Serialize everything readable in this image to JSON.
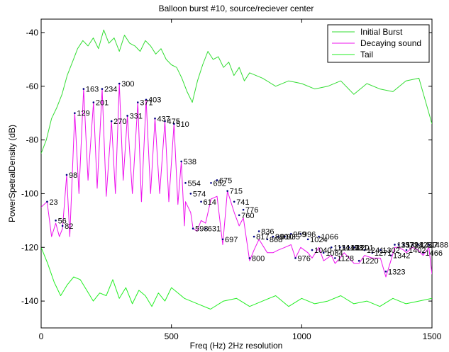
{
  "chart_data": {
    "type": "line",
    "title": "Balloon burst #10, source/reciever center",
    "xlabel": "Freq (Hz) 2Hz resolution",
    "ylabel": "PowerSpetralDensity (dB)",
    "xlim": [
      0,
      1500
    ],
    "ylim": [
      -150,
      -35
    ],
    "x_ticks": [
      0,
      500,
      1000,
      1500
    ],
    "y_ticks": [
      -140,
      -120,
      -100,
      -80,
      -60,
      -40
    ],
    "grid": false,
    "legend_position": "top-right",
    "series": [
      {
        "name": "Initial Burst",
        "color": "#33dd33",
        "x": [
          0,
          20,
          40,
          60,
          80,
          100,
          120,
          140,
          160,
          180,
          200,
          220,
          240,
          260,
          280,
          300,
          320,
          340,
          360,
          380,
          400,
          420,
          440,
          460,
          480,
          500,
          520,
          540,
          560,
          580,
          600,
          620,
          640,
          660,
          680,
          700,
          720,
          740,
          760,
          780,
          800,
          850,
          900,
          950,
          1000,
          1050,
          1100,
          1150,
          1200,
          1250,
          1300,
          1350,
          1400,
          1450,
          1500
        ],
        "values": [
          -85,
          -80,
          -72,
          -68,
          -63,
          -56,
          -51,
          -46,
          -43,
          -45,
          -42,
          -46,
          -39,
          -44,
          -42,
          -47,
          -41,
          -44,
          -45,
          -47,
          -43,
          -45,
          -48,
          -46,
          -50,
          -52,
          -53,
          -57,
          -62,
          -66,
          -58,
          -52,
          -47,
          -50,
          -49,
          -53,
          -51,
          -56,
          -53,
          -58,
          -55,
          -57,
          -60,
          -58,
          -59,
          -61,
          -60,
          -58,
          -63,
          -59,
          -61,
          -62,
          -58,
          -57,
          -74
        ]
      },
      {
        "name": "Decaying sound",
        "color": "#ee11ee",
        "x": [
          0,
          23,
          40,
          56,
          70,
          82,
          98,
          110,
          129,
          145,
          163,
          180,
          201,
          215,
          234,
          250,
          270,
          285,
          300,
          315,
          331,
          350,
          371,
          385,
          403,
          420,
          437,
          455,
          475,
          490,
          510,
          525,
          538,
          550,
          554,
          574,
          583,
          598,
          614,
          631,
          652,
          675,
          697,
          715,
          741,
          760,
          776,
          800,
          817,
          836,
          868,
          890,
          910,
          935,
          959,
          976,
          996,
          1024,
          1040,
          1066,
          1084,
          1114,
          1128,
          1147,
          1163,
          1201,
          1220,
          1241,
          1271,
          1302,
          1323,
          1342,
          1357,
          1372,
          1391,
          1402,
          1425,
          1447,
          1466,
          1488,
          1500
        ],
        "values": [
          -105,
          -103,
          -116,
          -111,
          -116,
          -113,
          -93,
          -116,
          -70,
          -100,
          -61,
          -95,
          -66,
          -98,
          -61,
          -101,
          -73,
          -100,
          -59,
          -95,
          -71,
          -100,
          -66,
          -103,
          -65,
          -100,
          -72,
          -100,
          -73,
          -103,
          -74,
          -104,
          -88,
          -112,
          -103,
          -107,
          -113,
          -114,
          -110,
          -111,
          -102,
          -101,
          -119,
          -99,
          -107,
          -112,
          -109,
          -125,
          -121,
          -117,
          -122,
          -122,
          -121,
          -120,
          -119,
          -124,
          -120,
          -122,
          -124,
          -120,
          -125,
          -123,
          -126,
          -124,
          -122,
          -126,
          -126,
          -123,
          -124,
          -124,
          -131,
          -125,
          -120,
          -120,
          -121,
          -122,
          -120,
          -121,
          -123,
          -120,
          -130
        ]
      },
      {
        "name": "Tail",
        "color": "#22ee22",
        "x": [
          0,
          25,
          50,
          75,
          100,
          125,
          150,
          175,
          200,
          225,
          250,
          275,
          300,
          325,
          350,
          375,
          400,
          425,
          450,
          475,
          500,
          550,
          600,
          650,
          700,
          750,
          800,
          850,
          900,
          950,
          1000,
          1050,
          1100,
          1150,
          1200,
          1250,
          1300,
          1350,
          1400,
          1450,
          1500
        ],
        "values": [
          -120,
          -126,
          -133,
          -138,
          -134,
          -131,
          -132,
          -136,
          -140,
          -137,
          -138,
          -132,
          -139,
          -135,
          -141,
          -136,
          -138,
          -142,
          -137,
          -140,
          -135,
          -139,
          -141,
          -143,
          -140,
          -139,
          -142,
          -140,
          -138,
          -142,
          -139,
          -141,
          -140,
          -138,
          -141,
          -140,
          -142,
          -139,
          -141,
          -140,
          -139
        ]
      }
    ],
    "annotations": [
      {
        "text": "23",
        "x": 23,
        "y": -103
      },
      {
        "text": "56",
        "x": 56,
        "y": -110
      },
      {
        "text": "82",
        "x": 82,
        "y": -112
      },
      {
        "text": "98",
        "x": 98,
        "y": -93
      },
      {
        "text": "129",
        "x": 129,
        "y": -70
      },
      {
        "text": "163",
        "x": 163,
        "y": -61
      },
      {
        "text": "201",
        "x": 201,
        "y": -66
      },
      {
        "text": "234",
        "x": 234,
        "y": -61
      },
      {
        "text": "270",
        "x": 270,
        "y": -73
      },
      {
        "text": "300",
        "x": 300,
        "y": -59
      },
      {
        "text": "331",
        "x": 331,
        "y": -71
      },
      {
        "text": "371",
        "x": 371,
        "y": -66
      },
      {
        "text": "403",
        "x": 403,
        "y": -65
      },
      {
        "text": "437",
        "x": 437,
        "y": -72
      },
      {
        "text": "475",
        "x": 475,
        "y": -73
      },
      {
        "text": "510",
        "x": 510,
        "y": -74
      },
      {
        "text": "538",
        "x": 538,
        "y": -88
      },
      {
        "text": "554",
        "x": 554,
        "y": -96
      },
      {
        "text": "574",
        "x": 574,
        "y": -100
      },
      {
        "text": "598",
        "x": 583,
        "y": -113
      },
      {
        "text": "614",
        "x": 614,
        "y": -103
      },
      {
        "text": "631",
        "x": 631,
        "y": -113
      },
      {
        "text": "652",
        "x": 652,
        "y": -96
      },
      {
        "text": "675",
        "x": 675,
        "y": -95
      },
      {
        "text": "697",
        "x": 697,
        "y": -117
      },
      {
        "text": "715",
        "x": 715,
        "y": -99
      },
      {
        "text": "741",
        "x": 741,
        "y": -103
      },
      {
        "text": "760",
        "x": 760,
        "y": -108
      },
      {
        "text": "776",
        "x": 776,
        "y": -106
      },
      {
        "text": "800",
        "x": 800,
        "y": -124
      },
      {
        "text": "817",
        "x": 817,
        "y": -116
      },
      {
        "text": "836",
        "x": 836,
        "y": -114
      },
      {
        "text": "868",
        "x": 868,
        "y": -117
      },
      {
        "text": "890",
        "x": 890,
        "y": -116
      },
      {
        "text": "910",
        "x": 910,
        "y": -116
      },
      {
        "text": "935",
        "x": 935,
        "y": -116
      },
      {
        "text": "959",
        "x": 959,
        "y": -115
      },
      {
        "text": "976",
        "x": 976,
        "y": -124
      },
      {
        "text": "996",
        "x": 996,
        "y": -115
      },
      {
        "text": "1024",
        "x": 1024,
        "y": -117
      },
      {
        "text": "1040",
        "x": 1040,
        "y": -121
      },
      {
        "text": "1066",
        "x": 1066,
        "y": -116
      },
      {
        "text": "1084",
        "x": 1084,
        "y": -122
      },
      {
        "text": "1114",
        "x": 1114,
        "y": -120
      },
      {
        "text": "1128",
        "x": 1128,
        "y": -124
      },
      {
        "text": "1147",
        "x": 1147,
        "y": -120
      },
      {
        "text": "1163",
        "x": 1163,
        "y": -120
      },
      {
        "text": "1181",
        "x": 1181,
        "y": -120
      },
      {
        "text": "1201",
        "x": 1201,
        "y": -120
      },
      {
        "text": "1220",
        "x": 1220,
        "y": -125
      },
      {
        "text": "1241",
        "x": 1241,
        "y": -121
      },
      {
        "text": "1271",
        "x": 1271,
        "y": -122
      },
      {
        "text": "1302",
        "x": 1302,
        "y": -121
      },
      {
        "text": "1323",
        "x": 1323,
        "y": -129
      },
      {
        "text": "1342",
        "x": 1342,
        "y": -123
      },
      {
        "text": "1357",
        "x": 1357,
        "y": -119
      },
      {
        "text": "1372",
        "x": 1372,
        "y": -119
      },
      {
        "text": "1391",
        "x": 1391,
        "y": -119
      },
      {
        "text": "1402",
        "x": 1402,
        "y": -121
      },
      {
        "text": "1425",
        "x": 1425,
        "y": -119
      },
      {
        "text": "1447",
        "x": 1447,
        "y": -119
      },
      {
        "text": "1466",
        "x": 1466,
        "y": -122
      },
      {
        "text": "1488",
        "x": 1488,
        "y": -119
      }
    ]
  }
}
